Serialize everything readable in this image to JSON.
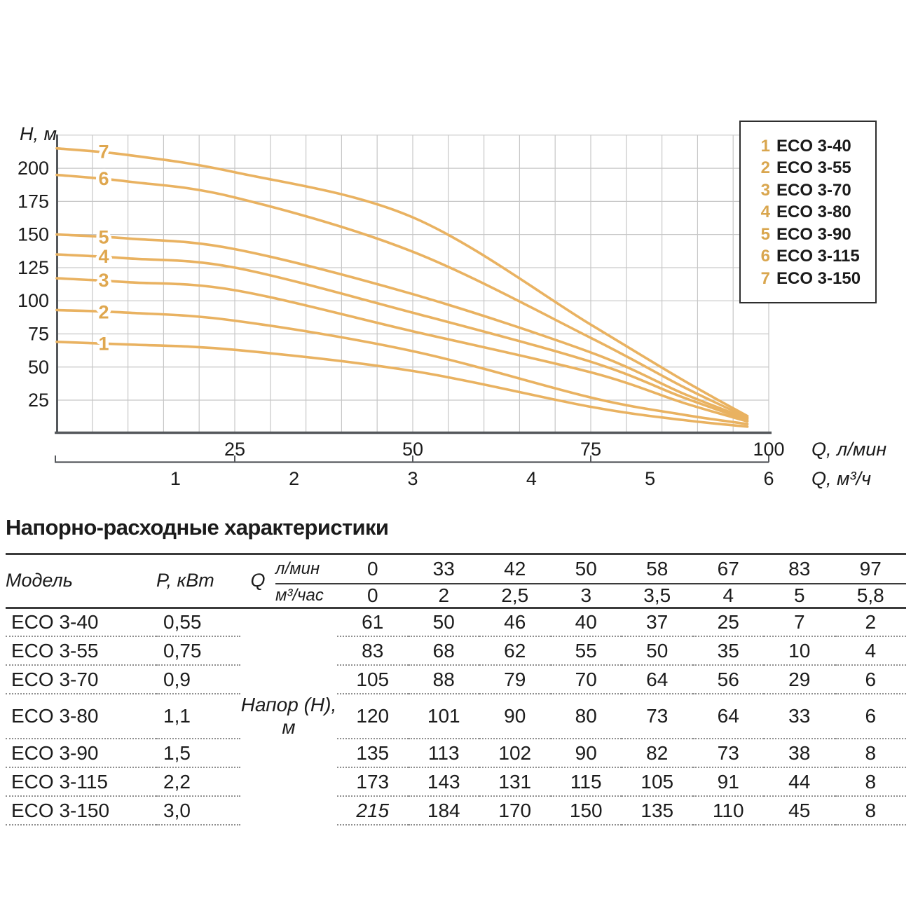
{
  "chart": {
    "y_axis_label": "H, м",
    "x_axis_label_top": "Q, л/мин",
    "x_axis_label_bottom": "Q, м³/ч",
    "y_ticks": [
      "200",
      "175",
      "150",
      "125",
      "100",
      "75",
      "50",
      "25"
    ],
    "y_tick_values": [
      200,
      175,
      150,
      125,
      100,
      75,
      50,
      25
    ],
    "x_ticks_top": [
      "25",
      "50",
      "75",
      "100"
    ],
    "x_tick_top_values": [
      25,
      50,
      75,
      100
    ],
    "x_ticks_bottom": [
      "1",
      "2",
      "3",
      "4",
      "5",
      "6"
    ],
    "x_tick_bottom_values": [
      1,
      2,
      3,
      4,
      5,
      6
    ],
    "legend": [
      {
        "num": "1",
        "label": "ECO 3-40"
      },
      {
        "num": "2",
        "label": "ECO 3-55"
      },
      {
        "num": "3",
        "label": "ECO 3-70"
      },
      {
        "num": "4",
        "label": "ECO 3-80"
      },
      {
        "num": "5",
        "label": "ECO 3-90"
      },
      {
        "num": "6",
        "label": "ECO 3-115"
      },
      {
        "num": "7",
        "label": "ECO 3-150"
      }
    ],
    "render": {
      "curve_color": "#E9B261",
      "label_color": "#DFA74F",
      "grid_color": "#C7C7C7",
      "axis_color": "#55585C",
      "text_color": "#1b1b1b",
      "curves": [
        {
          "id": "1",
          "label_h": 67.5,
          "points": [
            [
              0,
              69
            ],
            [
              10,
              67
            ],
            [
              25,
              63
            ],
            [
              50,
              47
            ],
            [
              75,
              20
            ],
            [
              88,
              10
            ],
            [
              97,
              5
            ]
          ]
        },
        {
          "id": "2",
          "label_h": 91.5,
          "points": [
            [
              0,
              93
            ],
            [
              10,
              91
            ],
            [
              25,
              85
            ],
            [
              50,
              62
            ],
            [
              75,
              27
            ],
            [
              88,
              14
            ],
            [
              97,
              7
            ]
          ]
        },
        {
          "id": "3",
          "label_h": 115.5,
          "points": [
            [
              0,
              117
            ],
            [
              10,
              114
            ],
            [
              25,
              108
            ],
            [
              50,
              77
            ],
            [
              75,
              46
            ],
            [
              88,
              23
            ],
            [
              97,
              9
            ]
          ]
        },
        {
          "id": "4",
          "label_h": 133.5,
          "points": [
            [
              0,
              135
            ],
            [
              10,
              132
            ],
            [
              25,
              125
            ],
            [
              50,
              91
            ],
            [
              75,
              54
            ],
            [
              88,
              27
            ],
            [
              97,
              10
            ]
          ]
        },
        {
          "id": "5",
          "label_h": 148,
          "points": [
            [
              0,
              150
            ],
            [
              10,
              147
            ],
            [
              25,
              139
            ],
            [
              50,
              105
            ],
            [
              75,
              61
            ],
            [
              88,
              30
            ],
            [
              97,
              11
            ]
          ]
        },
        {
          "id": "6",
          "label_h": 192,
          "points": [
            [
              0,
              195
            ],
            [
              10,
              190
            ],
            [
              25,
              178
            ],
            [
              50,
              137
            ],
            [
              75,
              72
            ],
            [
              88,
              35
            ],
            [
              97,
              12
            ]
          ]
        },
        {
          "id": "7",
          "label_h": 212.5,
          "points": [
            [
              0,
              215
            ],
            [
              10,
              210
            ],
            [
              25,
              197
            ],
            [
              50,
              163
            ],
            [
              75,
              82
            ],
            [
              88,
              40
            ],
            [
              97,
              13
            ]
          ]
        }
      ]
    }
  },
  "chart_data": {
    "type": "line",
    "title": "",
    "ylabel": "H, м",
    "xlabel": "Q, л/мин (top scale) / Q, м³/ч (bottom scale)",
    "xlim": [
      0,
      100
    ],
    "ylim": [
      0,
      225
    ],
    "grid": true,
    "legend_position": "top-right",
    "x_lmin": [
      0,
      33,
      42,
      50,
      58,
      67,
      83,
      97
    ],
    "x_m3h": [
      0,
      2,
      2.5,
      3,
      3.5,
      4,
      5,
      5.8
    ],
    "series": [
      {
        "name": "ECO 3-40",
        "curve_number": 1,
        "values": [
          61,
          50,
          46,
          40,
          37,
          25,
          7,
          2
        ]
      },
      {
        "name": "ECO 3-55",
        "curve_number": 2,
        "values": [
          83,
          68,
          62,
          55,
          50,
          35,
          10,
          4
        ]
      },
      {
        "name": "ECO 3-70",
        "curve_number": 3,
        "values": [
          105,
          88,
          79,
          70,
          64,
          56,
          29,
          6
        ]
      },
      {
        "name": "ECO 3-80",
        "curve_number": 4,
        "values": [
          120,
          101,
          90,
          80,
          73,
          64,
          33,
          6
        ]
      },
      {
        "name": "ECO 3-90",
        "curve_number": 5,
        "values": [
          135,
          113,
          102,
          90,
          82,
          73,
          38,
          8
        ]
      },
      {
        "name": "ECO 3-115",
        "curve_number": 6,
        "values": [
          173,
          143,
          131,
          115,
          105,
          91,
          44,
          8
        ]
      },
      {
        "name": "ECO 3-150",
        "curve_number": 7,
        "values": [
          215,
          184,
          170,
          150,
          135,
          110,
          45,
          8
        ]
      }
    ]
  },
  "section": {
    "title": "Напорно-расходные характеристики"
  },
  "table": {
    "col_model": "Модель",
    "col_power": "P, кВт",
    "col_q": "Q",
    "unit_top": "л/мин",
    "unit_bottom": "м³/час",
    "q_lmin": [
      "0",
      "33",
      "42",
      "50",
      "58",
      "67",
      "83",
      "97"
    ],
    "q_m3h": [
      "0",
      "2",
      "2,5",
      "3",
      "3,5",
      "4",
      "5",
      "5,8"
    ],
    "head_label": "Напор (H), м",
    "head_label_row": 3,
    "rows": [
      {
        "model": "ECO 3-40",
        "power": "0,55",
        "values": [
          "61",
          "50",
          "46",
          "40",
          "37",
          "25",
          "7",
          "2"
        ],
        "first_italic": false
      },
      {
        "model": "ECO 3-55",
        "power": "0,75",
        "values": [
          "83",
          "68",
          "62",
          "55",
          "50",
          "35",
          "10",
          "4"
        ],
        "first_italic": false
      },
      {
        "model": "ECO 3-70",
        "power": "0,9",
        "values": [
          "105",
          "88",
          "79",
          "70",
          "64",
          "56",
          "29",
          "6"
        ],
        "first_italic": false
      },
      {
        "model": "ECO 3-80",
        "power": "1,1",
        "values": [
          "120",
          "101",
          "90",
          "80",
          "73",
          "64",
          "33",
          "6"
        ],
        "first_italic": false
      },
      {
        "model": "ECO 3-90",
        "power": "1,5",
        "values": [
          "135",
          "113",
          "102",
          "90",
          "82",
          "73",
          "38",
          "8"
        ],
        "first_italic": false
      },
      {
        "model": "ECO 3-115",
        "power": "2,2",
        "values": [
          "173",
          "143",
          "131",
          "115",
          "105",
          "91",
          "44",
          "8"
        ],
        "first_italic": false
      },
      {
        "model": "ECO 3-150",
        "power": "3,0",
        "values": [
          "215",
          "184",
          "170",
          "150",
          "135",
          "110",
          "45",
          "8"
        ],
        "first_italic": true
      }
    ]
  }
}
